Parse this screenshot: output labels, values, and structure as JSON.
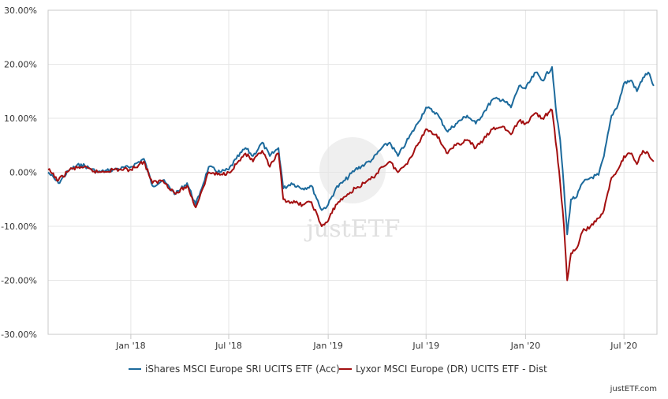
{
  "chart_data": {
    "type": "line",
    "ylim": [
      -30,
      30
    ],
    "y_ticks": [
      {
        "value": 30,
        "label": "30.00%"
      },
      {
        "value": 20,
        "label": "20.00%"
      },
      {
        "value": 10,
        "label": "10.00%"
      },
      {
        "value": 0,
        "label": "0.00%"
      },
      {
        "value": -10,
        "label": "-10.00%"
      },
      {
        "value": -20,
        "label": "-20.00%"
      },
      {
        "value": -30,
        "label": "-30.00%"
      }
    ],
    "xlim": [
      "2017-08-01",
      "2020-08-31"
    ],
    "x_ticks": [
      {
        "date": "2018-01-01",
        "label": "Jan '18"
      },
      {
        "date": "2018-07-01",
        "label": "Jul '18"
      },
      {
        "date": "2019-01-01",
        "label": "Jan '19"
      },
      {
        "date": "2019-07-01",
        "label": "Jul '19"
      },
      {
        "date": "2020-01-01",
        "label": "Jan '20"
      },
      {
        "date": "2020-07-01",
        "label": "Jul '20"
      }
    ],
    "grid": true,
    "legend_position": "bottom",
    "series": [
      {
        "name": "iShares MSCI Europe SRI UCITS ETF (Acc)",
        "color": "#1c6a9c",
        "points": [
          [
            "2017-08-01",
            0.0
          ],
          [
            "2017-08-20",
            -2.0
          ],
          [
            "2017-09-10",
            0.5
          ],
          [
            "2017-10-01",
            1.5
          ],
          [
            "2017-11-01",
            0.0
          ],
          [
            "2017-12-01",
            0.5
          ],
          [
            "2018-01-01",
            1.0
          ],
          [
            "2018-01-25",
            2.5
          ],
          [
            "2018-02-10",
            -2.5
          ],
          [
            "2018-03-01",
            -1.5
          ],
          [
            "2018-03-25",
            -4.0
          ],
          [
            "2018-04-15",
            -2.0
          ],
          [
            "2018-05-01",
            -6.0
          ],
          [
            "2018-05-10",
            -3.5
          ],
          [
            "2018-05-25",
            1.0
          ],
          [
            "2018-06-15",
            0.0
          ],
          [
            "2018-07-01",
            0.5
          ],
          [
            "2018-07-15",
            2.5
          ],
          [
            "2018-08-01",
            4.5
          ],
          [
            "2018-08-15",
            3.0
          ],
          [
            "2018-09-01",
            5.5
          ],
          [
            "2018-09-15",
            3.0
          ],
          [
            "2018-10-01",
            4.5
          ],
          [
            "2018-10-10",
            -3.0
          ],
          [
            "2018-10-25",
            -2.0
          ],
          [
            "2018-11-15",
            -3.0
          ],
          [
            "2018-12-01",
            -2.5
          ],
          [
            "2018-12-20",
            -7.0
          ],
          [
            "2019-01-01",
            -6.0
          ],
          [
            "2019-01-15",
            -3.0
          ],
          [
            "2019-02-01",
            -1.5
          ],
          [
            "2019-02-20",
            0.5
          ],
          [
            "2019-03-10",
            1.5
          ],
          [
            "2019-03-25",
            2.5
          ],
          [
            "2019-04-10",
            4.5
          ],
          [
            "2019-04-25",
            5.5
          ],
          [
            "2019-05-10",
            3.0
          ],
          [
            "2019-05-25",
            5.5
          ],
          [
            "2019-06-15",
            9.0
          ],
          [
            "2019-07-01",
            12.0
          ],
          [
            "2019-07-20",
            11.0
          ],
          [
            "2019-08-10",
            7.5
          ],
          [
            "2019-08-25",
            9.0
          ],
          [
            "2019-09-15",
            10.5
          ],
          [
            "2019-10-01",
            9.0
          ],
          [
            "2019-10-15",
            11.0
          ],
          [
            "2019-11-01",
            13.5
          ],
          [
            "2019-11-20",
            13.5
          ],
          [
            "2019-12-05",
            12.0
          ],
          [
            "2019-12-20",
            16.0
          ],
          [
            "2020-01-01",
            15.5
          ],
          [
            "2020-01-20",
            18.5
          ],
          [
            "2020-02-01",
            17.0
          ],
          [
            "2020-02-19",
            19.5
          ],
          [
            "2020-02-28",
            10.0
          ],
          [
            "2020-03-05",
            6.0
          ],
          [
            "2020-03-12",
            -3.0
          ],
          [
            "2020-03-18",
            -11.5
          ],
          [
            "2020-03-25",
            -5.0
          ],
          [
            "2020-04-05",
            -4.5
          ],
          [
            "2020-04-15",
            -2.0
          ],
          [
            "2020-04-30",
            -1.0
          ],
          [
            "2020-05-15",
            -0.5
          ],
          [
            "2020-05-25",
            3.0
          ],
          [
            "2020-06-08",
            10.5
          ],
          [
            "2020-06-20",
            12.5
          ],
          [
            "2020-07-01",
            16.5
          ],
          [
            "2020-07-15",
            17.0
          ],
          [
            "2020-07-25",
            15.0
          ],
          [
            "2020-08-05",
            17.5
          ],
          [
            "2020-08-15",
            18.5
          ],
          [
            "2020-08-25",
            16.0
          ]
        ]
      },
      {
        "name": "Lyxor MSCI Europe (DR) UCITS ETF - Dist",
        "color": "#a30f10",
        "points": [
          [
            "2017-08-01",
            0.5
          ],
          [
            "2017-08-20",
            -1.5
          ],
          [
            "2017-09-10",
            0.5
          ],
          [
            "2017-10-01",
            1.0
          ],
          [
            "2017-11-01",
            0.0
          ],
          [
            "2017-12-01",
            0.5
          ],
          [
            "2018-01-01",
            0.5
          ],
          [
            "2018-01-25",
            2.0
          ],
          [
            "2018-02-10",
            -2.0
          ],
          [
            "2018-03-01",
            -1.5
          ],
          [
            "2018-03-25",
            -4.0
          ],
          [
            "2018-04-15",
            -2.5
          ],
          [
            "2018-05-01",
            -6.5
          ],
          [
            "2018-05-10",
            -4.0
          ],
          [
            "2018-05-25",
            0.0
          ],
          [
            "2018-06-15",
            -0.5
          ],
          [
            "2018-07-01",
            0.0
          ],
          [
            "2018-07-15",
            1.5
          ],
          [
            "2018-08-01",
            3.5
          ],
          [
            "2018-08-15",
            2.0
          ],
          [
            "2018-09-01",
            4.0
          ],
          [
            "2018-09-15",
            1.0
          ],
          [
            "2018-10-01",
            3.5
          ],
          [
            "2018-10-10",
            -5.0
          ],
          [
            "2018-10-25",
            -5.5
          ],
          [
            "2018-11-15",
            -6.0
          ],
          [
            "2018-12-01",
            -5.5
          ],
          [
            "2018-12-20",
            -10.0
          ],
          [
            "2019-01-01",
            -9.0
          ],
          [
            "2019-01-15",
            -6.0
          ],
          [
            "2019-02-01",
            -4.5
          ],
          [
            "2019-02-20",
            -3.0
          ],
          [
            "2019-03-10",
            -2.0
          ],
          [
            "2019-03-25",
            -1.0
          ],
          [
            "2019-04-10",
            1.0
          ],
          [
            "2019-04-25",
            2.0
          ],
          [
            "2019-05-10",
            0.0
          ],
          [
            "2019-05-25",
            1.5
          ],
          [
            "2019-06-15",
            5.0
          ],
          [
            "2019-07-01",
            8.0
          ],
          [
            "2019-07-20",
            7.0
          ],
          [
            "2019-08-10",
            3.5
          ],
          [
            "2019-08-25",
            5.0
          ],
          [
            "2019-09-15",
            6.0
          ],
          [
            "2019-10-01",
            4.5
          ],
          [
            "2019-10-15",
            6.0
          ],
          [
            "2019-11-01",
            8.0
          ],
          [
            "2019-11-20",
            8.5
          ],
          [
            "2019-12-05",
            7.0
          ],
          [
            "2019-12-20",
            9.5
          ],
          [
            "2020-01-01",
            9.0
          ],
          [
            "2020-01-20",
            11.0
          ],
          [
            "2020-02-01",
            10.0
          ],
          [
            "2020-02-19",
            11.5
          ],
          [
            "2020-02-28",
            4.0
          ],
          [
            "2020-03-05",
            -2.0
          ],
          [
            "2020-03-12",
            -10.0
          ],
          [
            "2020-03-18",
            -20.0
          ],
          [
            "2020-03-25",
            -15.0
          ],
          [
            "2020-04-05",
            -14.0
          ],
          [
            "2020-04-15",
            -11.0
          ],
          [
            "2020-04-30",
            -10.0
          ],
          [
            "2020-05-15",
            -8.5
          ],
          [
            "2020-05-25",
            -7.0
          ],
          [
            "2020-06-08",
            -1.0
          ],
          [
            "2020-06-20",
            0.5
          ],
          [
            "2020-07-01",
            3.0
          ],
          [
            "2020-07-15",
            3.5
          ],
          [
            "2020-07-25",
            1.5
          ],
          [
            "2020-08-05",
            4.0
          ],
          [
            "2020-08-15",
            3.5
          ],
          [
            "2020-08-25",
            2.0
          ]
        ]
      }
    ]
  },
  "watermark": "justETF",
  "credit": "justETF.com"
}
